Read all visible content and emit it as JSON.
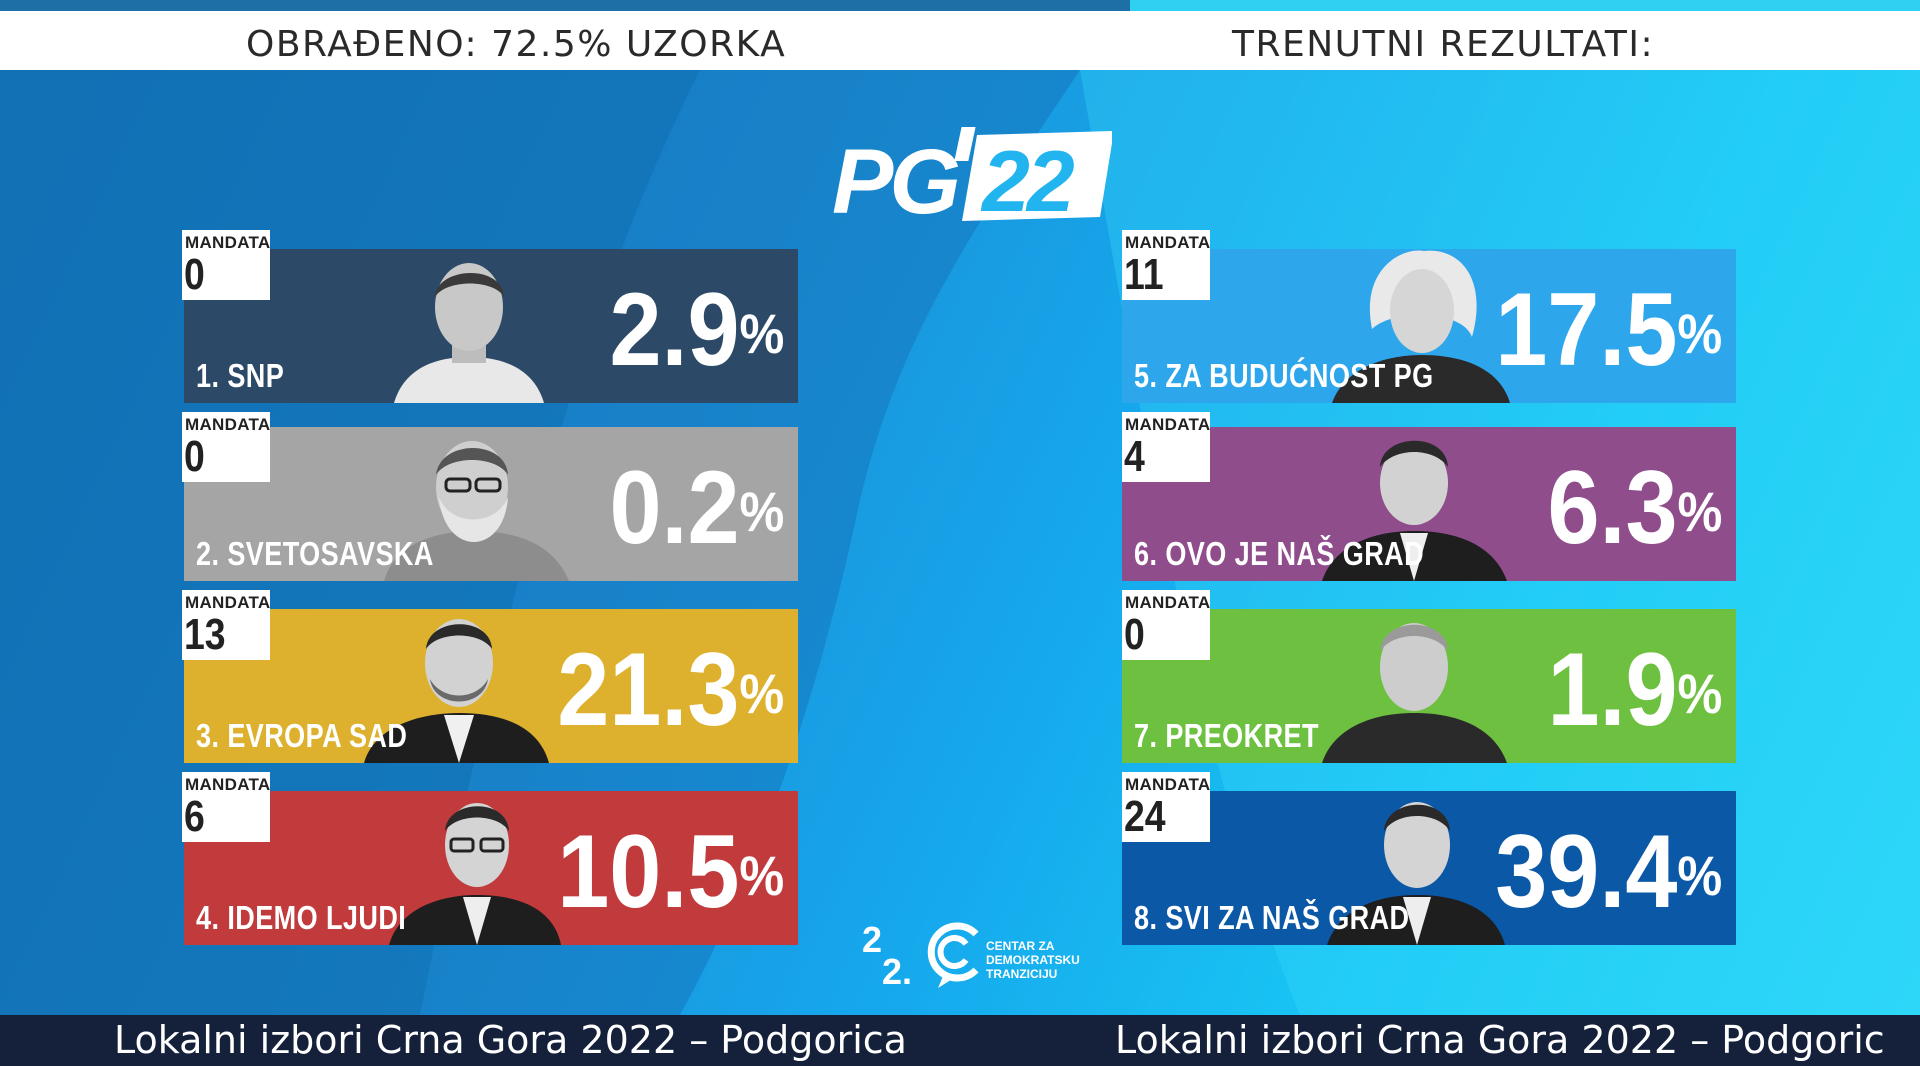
{
  "header": {
    "processed_text": "OBRAĐENO: 72.5% UZORKA",
    "results_text": "TRENUTNI REZULTATI:"
  },
  "logo": {
    "text": "PG",
    "year": "22"
  },
  "mandate_label": "MANDATA",
  "parties": [
    {
      "name": "1. SNP",
      "percent": "2.9",
      "mandates": "0",
      "color": "#2c4a67"
    },
    {
      "name": "2. SVETOSAVSKA",
      "percent": "0.2",
      "mandates": "0",
      "color": "#a5a5a5"
    },
    {
      "name": "3. EVROPA SAD",
      "percent": "21.3",
      "mandates": "13",
      "color": "#ddb12e"
    },
    {
      "name": "4. IDEMO LJUDI",
      "percent": "10.5",
      "mandates": "6",
      "color": "#c13a3c"
    },
    {
      "name": "5. ZA BUDUĆNOST PG",
      "percent": "17.5",
      "mandates": "11",
      "color": "#2ea6ec"
    },
    {
      "name": "6. OVO JE NAŠ GRAD",
      "percent": "6.3",
      "mandates": "4",
      "color": "#8f4d8c"
    },
    {
      "name": "7. PREOKRET",
      "percent": "1.9",
      "mandates": "0",
      "color": "#6ec041"
    },
    {
      "name": "8. SVI ZA NAŠ GRAD",
      "percent": "39.4",
      "mandates": "24",
      "color": "#0b58a6"
    }
  ],
  "percent_sign": "%",
  "org_logo": {
    "lines": [
      "CENTAR ZA",
      "DEMOKRATSKU",
      "TRANZICIJU"
    ]
  },
  "footer": {
    "ticker_1": "Lokalni izbori Crna Gora 2022 – Podgorica",
    "ticker_2": "Lokalni izbori Crna Gora 2022 – Podgoric"
  }
}
